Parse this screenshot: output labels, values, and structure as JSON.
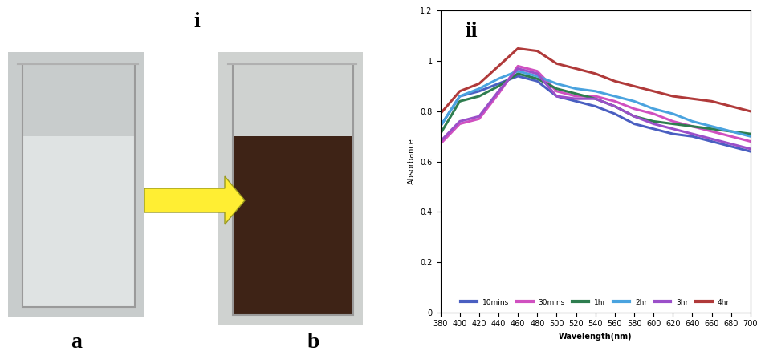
{
  "figure": {
    "panel_label": "i",
    "image_labels": [
      "a",
      "b"
    ]
  },
  "chart_data": {
    "type": "line",
    "title": "ii",
    "x_label": "Wavelength(nm)",
    "y_label": "Absorbance",
    "x": [
      380,
      400,
      420,
      440,
      460,
      480,
      500,
      520,
      540,
      560,
      580,
      600,
      620,
      640,
      660,
      680,
      700
    ],
    "series": [
      {
        "name": "10mins",
        "color": "#4a5fc1",
        "values": [
          0.74,
          0.86,
          0.88,
          0.91,
          0.94,
          0.92,
          0.86,
          0.84,
          0.82,
          0.79,
          0.75,
          0.73,
          0.71,
          0.7,
          0.68,
          0.66,
          0.64
        ]
      },
      {
        "name": "30mins",
        "color": "#d050c0",
        "values": [
          0.67,
          0.75,
          0.77,
          0.87,
          0.98,
          0.96,
          0.88,
          0.86,
          0.86,
          0.84,
          0.81,
          0.79,
          0.76,
          0.74,
          0.72,
          0.7,
          0.68
        ]
      },
      {
        "name": "1hr",
        "color": "#2e7d4f",
        "values": [
          0.71,
          0.84,
          0.86,
          0.9,
          0.95,
          0.93,
          0.89,
          0.87,
          0.85,
          0.82,
          0.78,
          0.76,
          0.75,
          0.74,
          0.73,
          0.72,
          0.71
        ]
      },
      {
        "name": "2hr",
        "color": "#4aa3df",
        "values": [
          0.74,
          0.86,
          0.89,
          0.93,
          0.96,
          0.94,
          0.91,
          0.89,
          0.88,
          0.86,
          0.84,
          0.81,
          0.79,
          0.76,
          0.74,
          0.72,
          0.7
        ]
      },
      {
        "name": "3hr",
        "color": "#9b4fc9",
        "values": [
          0.68,
          0.76,
          0.78,
          0.88,
          0.97,
          0.95,
          0.86,
          0.85,
          0.85,
          0.82,
          0.78,
          0.75,
          0.73,
          0.71,
          0.69,
          0.67,
          0.65
        ]
      },
      {
        "name": "4hr",
        "color": "#b03a3a",
        "values": [
          0.79,
          0.88,
          0.91,
          0.98,
          1.05,
          1.04,
          0.99,
          0.97,
          0.95,
          0.92,
          0.9,
          0.88,
          0.86,
          0.85,
          0.84,
          0.82,
          0.8
        ]
      }
    ],
    "xlim": [
      380,
      700
    ],
    "xticks": [
      380,
      400,
      420,
      440,
      460,
      480,
      500,
      520,
      540,
      560,
      580,
      600,
      620,
      640,
      660,
      680,
      700
    ],
    "ylim": [
      0,
      1.2
    ],
    "yticks": [
      0,
      0.2,
      0.4,
      0.6,
      0.8,
      1,
      1.2
    ],
    "legend": "lower center"
  }
}
